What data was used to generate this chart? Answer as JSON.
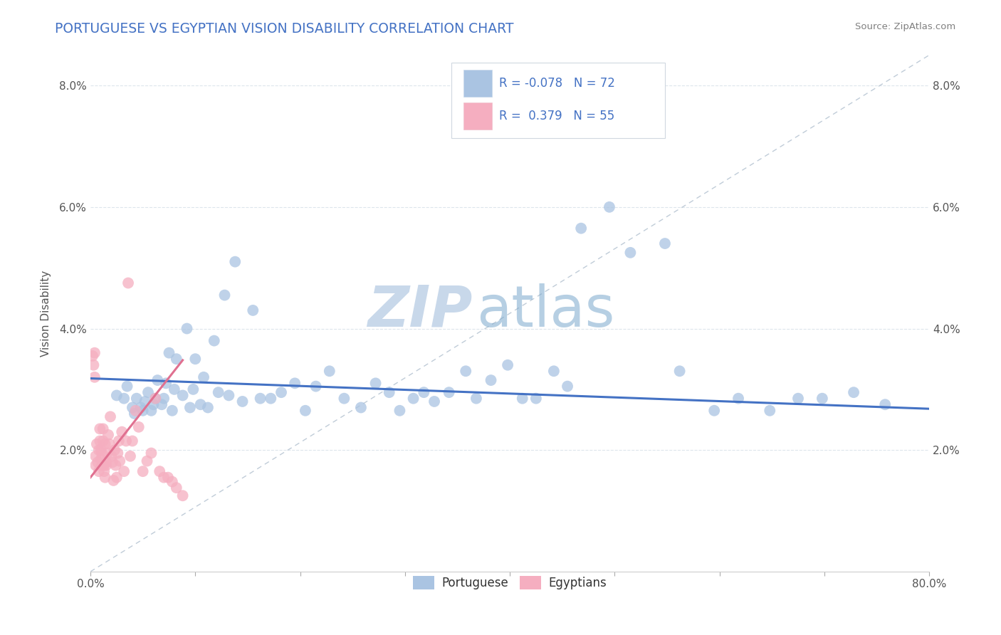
{
  "title": "PORTUGUESE VS EGYPTIAN VISION DISABILITY CORRELATION CHART",
  "source_text": "Source: ZipAtlas.com",
  "ylabel": "Vision Disability",
  "watermark_zip": "ZIP",
  "watermark_atlas": "atlas",
  "xlim": [
    0.0,
    0.8
  ],
  "ylim": [
    0.0,
    0.085
  ],
  "xticks": [
    0.0,
    0.1,
    0.2,
    0.3,
    0.4,
    0.5,
    0.6,
    0.7,
    0.8
  ],
  "xticklabels": [
    "0.0%",
    "",
    "",
    "",
    "",
    "",
    "",
    "",
    "80.0%"
  ],
  "yticks": [
    0.02,
    0.04,
    0.06,
    0.08
  ],
  "yticklabels_left": [
    "2.0%",
    "4.0%",
    "6.0%",
    "8.0%"
  ],
  "yticklabels_right": [
    "2.0%",
    "4.0%",
    "6.0%",
    "8.0%"
  ],
  "portuguese_color": "#aac4e2",
  "egyptian_color": "#f5aec0",
  "portuguese_line_color": "#4472c4",
  "egyptian_line_color": "#e07090",
  "portuguese_R": -0.078,
  "portuguese_N": 72,
  "egyptian_R": 0.379,
  "egyptian_N": 55,
  "title_color": "#4472c4",
  "source_color": "#808080",
  "watermark_color": "#c8d8ea",
  "watermark_atlas_color": "#7ba8cc",
  "legend_R_color": "#4472c4",
  "legend_border_color": "#d0d8e0",
  "grid_color": "#dde5ec",
  "portuguese_scatter_x": [
    0.025,
    0.035,
    0.032,
    0.04,
    0.042,
    0.044,
    0.048,
    0.05,
    0.052,
    0.055,
    0.058,
    0.06,
    0.062,
    0.064,
    0.068,
    0.07,
    0.072,
    0.075,
    0.078,
    0.08,
    0.082,
    0.088,
    0.092,
    0.095,
    0.098,
    0.1,
    0.105,
    0.108,
    0.112,
    0.118,
    0.122,
    0.128,
    0.132,
    0.138,
    0.145,
    0.155,
    0.162,
    0.172,
    0.182,
    0.195,
    0.205,
    0.215,
    0.228,
    0.242,
    0.258,
    0.272,
    0.285,
    0.295,
    0.308,
    0.318,
    0.328,
    0.342,
    0.358,
    0.368,
    0.382,
    0.398,
    0.412,
    0.425,
    0.442,
    0.455,
    0.468,
    0.495,
    0.515,
    0.548,
    0.562,
    0.595,
    0.618,
    0.648,
    0.675,
    0.698,
    0.728,
    0.758
  ],
  "portuguese_scatter_y": [
    0.029,
    0.0305,
    0.0285,
    0.027,
    0.026,
    0.0285,
    0.027,
    0.0265,
    0.028,
    0.0295,
    0.0265,
    0.0275,
    0.0285,
    0.0315,
    0.0275,
    0.0285,
    0.031,
    0.036,
    0.0265,
    0.03,
    0.035,
    0.029,
    0.04,
    0.027,
    0.03,
    0.035,
    0.0275,
    0.032,
    0.027,
    0.038,
    0.0295,
    0.0455,
    0.029,
    0.051,
    0.028,
    0.043,
    0.0285,
    0.0285,
    0.0295,
    0.031,
    0.0265,
    0.0305,
    0.033,
    0.0285,
    0.027,
    0.031,
    0.0295,
    0.0265,
    0.0285,
    0.0295,
    0.028,
    0.0295,
    0.033,
    0.0285,
    0.0315,
    0.034,
    0.0285,
    0.0285,
    0.033,
    0.0305,
    0.0565,
    0.06,
    0.0525,
    0.054,
    0.033,
    0.0265,
    0.0285,
    0.0265,
    0.0285,
    0.0285,
    0.0295,
    0.0275
  ],
  "egyptian_scatter_x": [
    0.002,
    0.003,
    0.004,
    0.004,
    0.005,
    0.005,
    0.006,
    0.007,
    0.008,
    0.008,
    0.009,
    0.009,
    0.01,
    0.01,
    0.011,
    0.011,
    0.012,
    0.012,
    0.013,
    0.013,
    0.014,
    0.014,
    0.015,
    0.015,
    0.016,
    0.017,
    0.018,
    0.019,
    0.02,
    0.021,
    0.022,
    0.023,
    0.024,
    0.025,
    0.026,
    0.027,
    0.028,
    0.03,
    0.032,
    0.034,
    0.036,
    0.038,
    0.04,
    0.043,
    0.046,
    0.05,
    0.054,
    0.058,
    0.062,
    0.066,
    0.07,
    0.074,
    0.078,
    0.082,
    0.088
  ],
  "egyptian_scatter_y": [
    0.0355,
    0.034,
    0.032,
    0.036,
    0.0175,
    0.019,
    0.021,
    0.018,
    0.0165,
    0.02,
    0.0215,
    0.0235,
    0.0185,
    0.02,
    0.0175,
    0.0195,
    0.0215,
    0.0235,
    0.0175,
    0.0165,
    0.0155,
    0.021,
    0.018,
    0.0175,
    0.0195,
    0.0225,
    0.021,
    0.0255,
    0.019,
    0.018,
    0.015,
    0.02,
    0.0175,
    0.0155,
    0.0195,
    0.0215,
    0.0182,
    0.023,
    0.0165,
    0.0215,
    0.0475,
    0.019,
    0.0215,
    0.0265,
    0.0238,
    0.0165,
    0.0182,
    0.0195,
    0.0285,
    0.0165,
    0.0155,
    0.0155,
    0.0148,
    0.0138,
    0.0125
  ],
  "portuguese_trend_x": [
    0.0,
    0.8
  ],
  "portuguese_trend_y": [
    0.0318,
    0.0268
  ],
  "egyptian_trend_x": [
    0.0,
    0.088
  ],
  "egyptian_trend_y": [
    0.0155,
    0.0348
  ],
  "dashed_line_x": [
    0.0,
    0.8
  ],
  "dashed_line_y": [
    0.0,
    0.085
  ]
}
